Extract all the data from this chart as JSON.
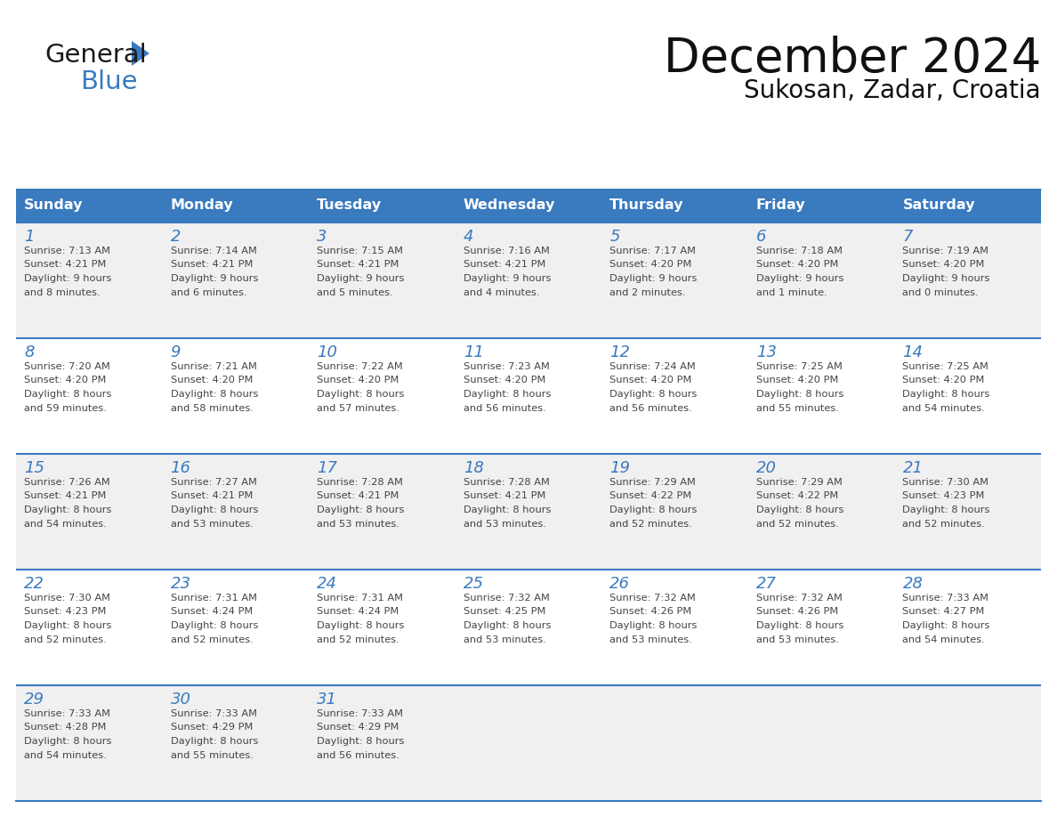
{
  "title": "December 2024",
  "subtitle": "Sukosan, Zadar, Croatia",
  "header_color": "#3a7abf",
  "header_text_color": "#ffffff",
  "cell_bg_light": "#f0f0f0",
  "cell_bg_white": "#ffffff",
  "day_number_color": "#3a7abf",
  "text_color": "#444444",
  "line_color": "#3a7abf",
  "days_of_week": [
    "Sunday",
    "Monday",
    "Tuesday",
    "Wednesday",
    "Thursday",
    "Friday",
    "Saturday"
  ],
  "weeks": [
    [
      {
        "day": 1,
        "sunrise": "7:13 AM",
        "sunset": "4:21 PM",
        "daylight": "9 hours",
        "daylight2": "and 8 minutes."
      },
      {
        "day": 2,
        "sunrise": "7:14 AM",
        "sunset": "4:21 PM",
        "daylight": "9 hours",
        "daylight2": "and 6 minutes."
      },
      {
        "day": 3,
        "sunrise": "7:15 AM",
        "sunset": "4:21 PM",
        "daylight": "9 hours",
        "daylight2": "and 5 minutes."
      },
      {
        "day": 4,
        "sunrise": "7:16 AM",
        "sunset": "4:21 PM",
        "daylight": "9 hours",
        "daylight2": "and 4 minutes."
      },
      {
        "day": 5,
        "sunrise": "7:17 AM",
        "sunset": "4:20 PM",
        "daylight": "9 hours",
        "daylight2": "and 2 minutes."
      },
      {
        "day": 6,
        "sunrise": "7:18 AM",
        "sunset": "4:20 PM",
        "daylight": "9 hours",
        "daylight2": "and 1 minute."
      },
      {
        "day": 7,
        "sunrise": "7:19 AM",
        "sunset": "4:20 PM",
        "daylight": "9 hours",
        "daylight2": "and 0 minutes."
      }
    ],
    [
      {
        "day": 8,
        "sunrise": "7:20 AM",
        "sunset": "4:20 PM",
        "daylight": "8 hours",
        "daylight2": "and 59 minutes."
      },
      {
        "day": 9,
        "sunrise": "7:21 AM",
        "sunset": "4:20 PM",
        "daylight": "8 hours",
        "daylight2": "and 58 minutes."
      },
      {
        "day": 10,
        "sunrise": "7:22 AM",
        "sunset": "4:20 PM",
        "daylight": "8 hours",
        "daylight2": "and 57 minutes."
      },
      {
        "day": 11,
        "sunrise": "7:23 AM",
        "sunset": "4:20 PM",
        "daylight": "8 hours",
        "daylight2": "and 56 minutes."
      },
      {
        "day": 12,
        "sunrise": "7:24 AM",
        "sunset": "4:20 PM",
        "daylight": "8 hours",
        "daylight2": "and 56 minutes."
      },
      {
        "day": 13,
        "sunrise": "7:25 AM",
        "sunset": "4:20 PM",
        "daylight": "8 hours",
        "daylight2": "and 55 minutes."
      },
      {
        "day": 14,
        "sunrise": "7:25 AM",
        "sunset": "4:20 PM",
        "daylight": "8 hours",
        "daylight2": "and 54 minutes."
      }
    ],
    [
      {
        "day": 15,
        "sunrise": "7:26 AM",
        "sunset": "4:21 PM",
        "daylight": "8 hours",
        "daylight2": "and 54 minutes."
      },
      {
        "day": 16,
        "sunrise": "7:27 AM",
        "sunset": "4:21 PM",
        "daylight": "8 hours",
        "daylight2": "and 53 minutes."
      },
      {
        "day": 17,
        "sunrise": "7:28 AM",
        "sunset": "4:21 PM",
        "daylight": "8 hours",
        "daylight2": "and 53 minutes."
      },
      {
        "day": 18,
        "sunrise": "7:28 AM",
        "sunset": "4:21 PM",
        "daylight": "8 hours",
        "daylight2": "and 53 minutes."
      },
      {
        "day": 19,
        "sunrise": "7:29 AM",
        "sunset": "4:22 PM",
        "daylight": "8 hours",
        "daylight2": "and 52 minutes."
      },
      {
        "day": 20,
        "sunrise": "7:29 AM",
        "sunset": "4:22 PM",
        "daylight": "8 hours",
        "daylight2": "and 52 minutes."
      },
      {
        "day": 21,
        "sunrise": "7:30 AM",
        "sunset": "4:23 PM",
        "daylight": "8 hours",
        "daylight2": "and 52 minutes."
      }
    ],
    [
      {
        "day": 22,
        "sunrise": "7:30 AM",
        "sunset": "4:23 PM",
        "daylight": "8 hours",
        "daylight2": "and 52 minutes."
      },
      {
        "day": 23,
        "sunrise": "7:31 AM",
        "sunset": "4:24 PM",
        "daylight": "8 hours",
        "daylight2": "and 52 minutes."
      },
      {
        "day": 24,
        "sunrise": "7:31 AM",
        "sunset": "4:24 PM",
        "daylight": "8 hours",
        "daylight2": "and 52 minutes."
      },
      {
        "day": 25,
        "sunrise": "7:32 AM",
        "sunset": "4:25 PM",
        "daylight": "8 hours",
        "daylight2": "and 53 minutes."
      },
      {
        "day": 26,
        "sunrise": "7:32 AM",
        "sunset": "4:26 PM",
        "daylight": "8 hours",
        "daylight2": "and 53 minutes."
      },
      {
        "day": 27,
        "sunrise": "7:32 AM",
        "sunset": "4:26 PM",
        "daylight": "8 hours",
        "daylight2": "and 53 minutes."
      },
      {
        "day": 28,
        "sunrise": "7:33 AM",
        "sunset": "4:27 PM",
        "daylight": "8 hours",
        "daylight2": "and 54 minutes."
      }
    ],
    [
      {
        "day": 29,
        "sunrise": "7:33 AM",
        "sunset": "4:28 PM",
        "daylight": "8 hours",
        "daylight2": "and 54 minutes."
      },
      {
        "day": 30,
        "sunrise": "7:33 AM",
        "sunset": "4:29 PM",
        "daylight": "8 hours",
        "daylight2": "and 55 minutes."
      },
      {
        "day": 31,
        "sunrise": "7:33 AM",
        "sunset": "4:29 PM",
        "daylight": "8 hours",
        "daylight2": "and 56 minutes."
      },
      null,
      null,
      null,
      null
    ]
  ]
}
